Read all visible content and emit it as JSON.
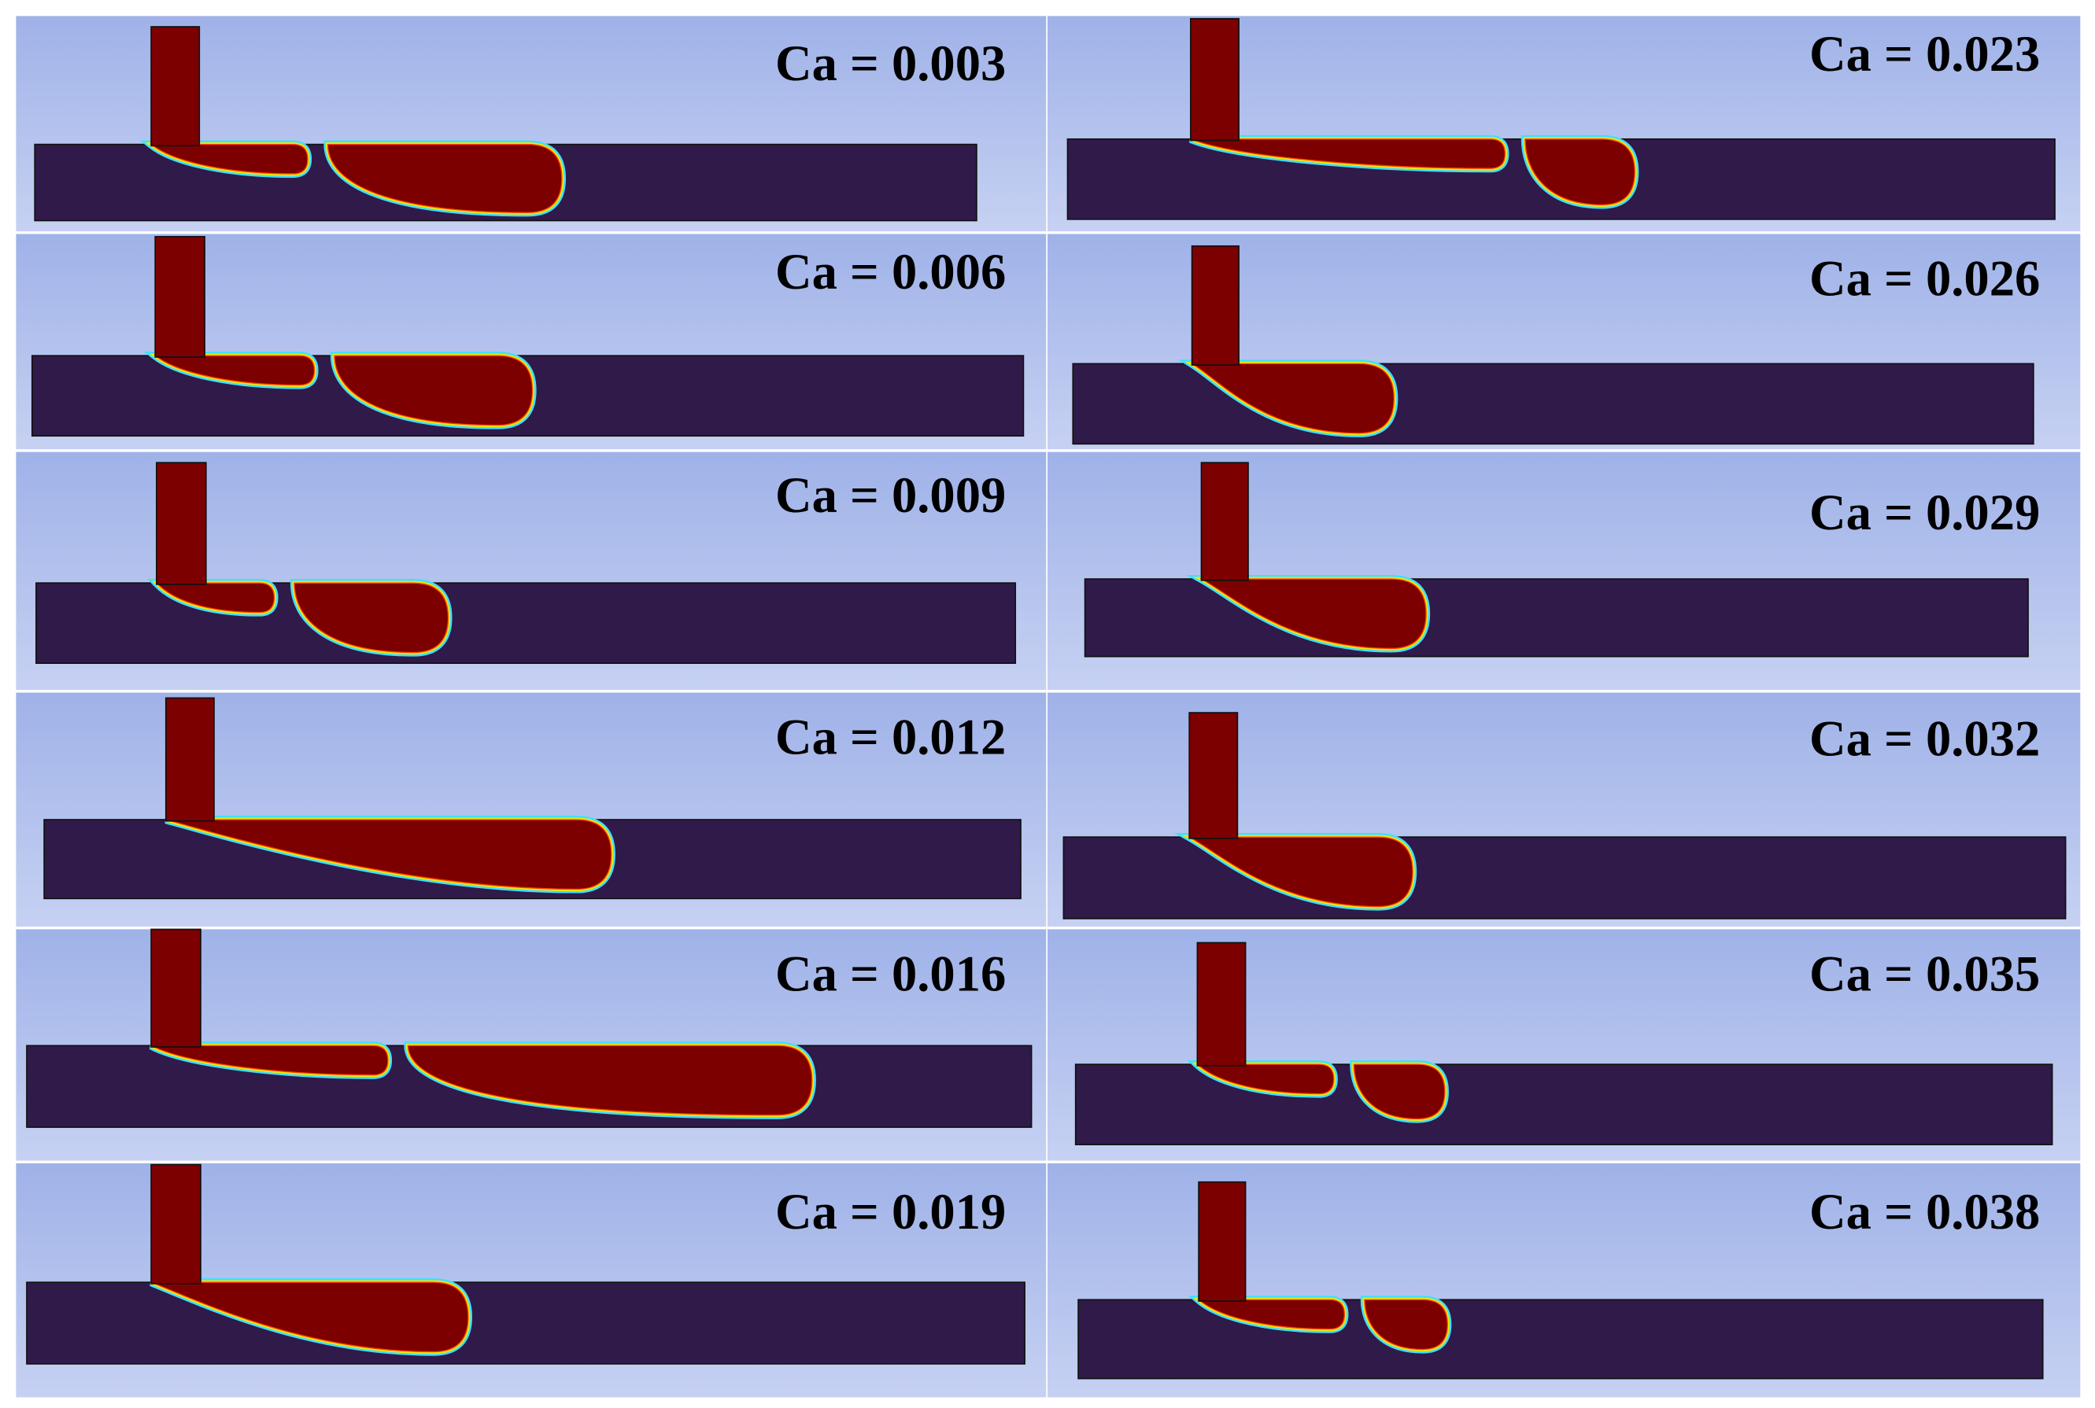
{
  "panels": [
    {
      "label": "Ca = 0.003"
    },
    {
      "label": "Ca = 0.006"
    },
    {
      "label": "Ca = 0.009"
    },
    {
      "label": "Ca = 0.012"
    },
    {
      "label": "Ca = 0.016"
    },
    {
      "label": "Ca = 0.019"
    },
    {
      "label": "Ca = 0.023"
    },
    {
      "label": "Ca = 0.026"
    },
    {
      "label": "Ca = 0.029"
    },
    {
      "label": "Ca = 0.032"
    },
    {
      "label": "Ca = 0.035"
    },
    {
      "label": "Ca = 0.038"
    }
  ]
}
